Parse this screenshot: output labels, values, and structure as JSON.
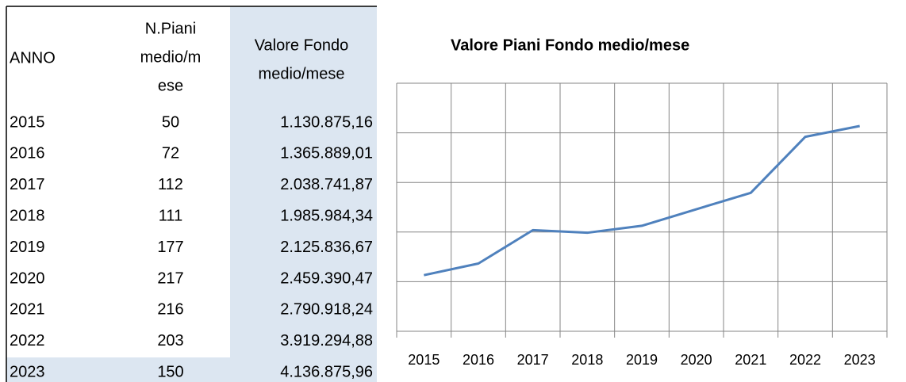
{
  "table": {
    "header": [
      "ANNO",
      [
        "N.Piani",
        "medio/m",
        "ese"
      ],
      [
        "Valore Fondo",
        "medio/mese"
      ]
    ],
    "rows": [
      [
        "2015",
        "50",
        "1.130.875,16"
      ],
      [
        "2016",
        "72",
        "1.365.889,01"
      ],
      [
        "2017",
        "112",
        "2.038.741,87"
      ],
      [
        "2018",
        "111",
        "1.985.984,34"
      ],
      [
        "2019",
        "177",
        "2.125.836,67"
      ],
      [
        "2020",
        "217",
        "2.459.390,47"
      ],
      [
        "2021",
        "216",
        "2.790.918,24"
      ],
      [
        "2022",
        "203",
        "3.919.294,88"
      ],
      [
        "2023",
        "150",
        "4.136.875,96"
      ]
    ]
  },
  "chart_data": {
    "type": "line",
    "title": "Valore Piani Fondo medio/mese",
    "categories": [
      "2015",
      "2016",
      "2017",
      "2018",
      "2019",
      "2020",
      "2021",
      "2022",
      "2023"
    ],
    "series": [
      {
        "color": "#4f81bd",
        "values": [
          1130875.16,
          1365889.01,
          2038741.87,
          1985984.34,
          2125836.67,
          2459390.47,
          2790918.24,
          3919294.88,
          4136875.96
        ]
      }
    ],
    "ylim": [
      0,
      5000000
    ],
    "yticks": [
      0,
      1000000,
      2000000,
      3000000,
      4000000,
      5000000
    ],
    "grid": true
  }
}
